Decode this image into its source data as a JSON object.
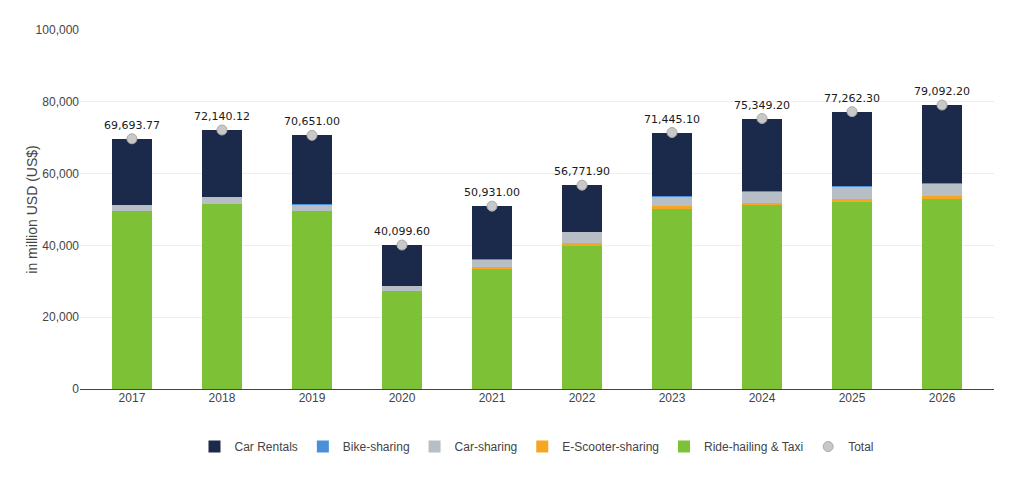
{
  "chart_data": {
    "type": "bar",
    "stacked": true,
    "categories": [
      "2017",
      "2018",
      "2019",
      "2020",
      "2021",
      "2022",
      "2023",
      "2024",
      "2025",
      "2026"
    ],
    "ylabel": "in million USD (US$)",
    "ylim": [
      0,
      100000
    ],
    "yticks": [
      0,
      {
        "value": 20000,
        "label": "20,000"
      },
      {
        "value": 40000,
        "label": "40,000"
      },
      {
        "value": 60000,
        "label": "60,000"
      },
      {
        "value": 80000,
        "label": "80,000"
      },
      {
        "value": 100000,
        "label": "100,000"
      }
    ],
    "grid": true,
    "legend": "bottom",
    "series": [
      {
        "name": "Total",
        "type": "scatter",
        "color": "#c8c8c8",
        "data_labels": true,
        "values": [
          69693.77,
          72140.12,
          70651.0,
          40099.6,
          50931.0,
          56771.9,
          71445.1,
          75349.2,
          77262.3,
          79092.2
        ],
        "value_labels": [
          "69,693.77",
          "72,140.12",
          "70,651.00",
          "40,099.60",
          "50,931.00",
          "56,771.90",
          "71,445.10",
          "75,349.20",
          "77,262.30",
          "79,092.20"
        ]
      },
      {
        "name": "Ride-hailing & Taxi",
        "type": "bar",
        "color": "#7dc136",
        "values": [
          49500,
          51500,
          49500,
          27200,
          33500,
          40000,
          50200,
          51200,
          52100,
          52800
        ]
      },
      {
        "name": "E-Scooter-sharing",
        "type": "bar",
        "color": "#f5a623",
        "values": [
          0,
          0,
          0,
          0,
          350,
          550,
          650,
          750,
          850,
          850
        ]
      },
      {
        "name": "Car-sharing",
        "type": "bar",
        "color": "#b8bec5",
        "values": [
          1800,
          2000,
          1900,
          1500,
          2200,
          3200,
          2700,
          3100,
          3400,
          3600
        ]
      },
      {
        "name": "Bike-sharing",
        "type": "bar",
        "color": "#4a90d9",
        "values": [
          80,
          80,
          80,
          40,
          80,
          80,
          80,
          80,
          80,
          80
        ]
      },
      {
        "name": "Car Rentals",
        "type": "bar",
        "color": "#1b2a4a",
        "values": [
          18313.77,
          18560.12,
          19171,
          11359.6,
          14801,
          12941.9,
          17815.1,
          20219.2,
          20832.3,
          21762.2
        ]
      }
    ]
  }
}
